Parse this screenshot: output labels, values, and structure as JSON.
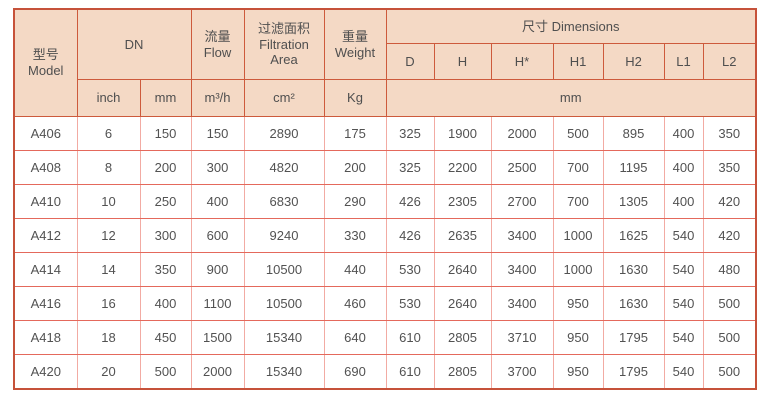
{
  "colors": {
    "header_bg": "#f4d9c5",
    "header_border": "#cd5a3c",
    "row_line": "#e4695c",
    "col_line": "#f2aba3",
    "text": "#4f4f4f"
  },
  "table": {
    "header": {
      "model_zh": "型号",
      "model_en": "Model",
      "dn": "DN",
      "flow_zh": "流量",
      "flow_en": "Flow",
      "area_zh": "过滤面积",
      "area_en": "Filtration Area",
      "weight_zh": "重量",
      "weight_en": "Weight",
      "dims_label": "尺寸 Dimensions",
      "dim_cols": [
        "D",
        "H",
        "H*",
        "H1",
        "H2",
        "L1",
        "L2"
      ],
      "units": {
        "inch": "inch",
        "mm": "mm",
        "flow": "m³/h",
        "area": "cm²",
        "weight": "Kg",
        "dims": "mm"
      }
    },
    "rows": [
      [
        "A406",
        "6",
        "150",
        "150",
        "2890",
        "175",
        "325",
        "1900",
        "2000",
        "500",
        "895",
        "400",
        "350"
      ],
      [
        "A408",
        "8",
        "200",
        "300",
        "4820",
        "200",
        "325",
        "2200",
        "2500",
        "700",
        "1195",
        "400",
        "350"
      ],
      [
        "A410",
        "10",
        "250",
        "400",
        "6830",
        "290",
        "426",
        "2305",
        "2700",
        "700",
        "1305",
        "400",
        "420"
      ],
      [
        "A412",
        "12",
        "300",
        "600",
        "9240",
        "330",
        "426",
        "2635",
        "3400",
        "1000",
        "1625",
        "540",
        "420"
      ],
      [
        "A414",
        "14",
        "350",
        "900",
        "10500",
        "440",
        "530",
        "2640",
        "3400",
        "1000",
        "1630",
        "540",
        "480"
      ],
      [
        "A416",
        "16",
        "400",
        "1100",
        "10500",
        "460",
        "530",
        "2640",
        "3400",
        "950",
        "1630",
        "540",
        "500"
      ],
      [
        "A418",
        "18",
        "450",
        "1500",
        "15340",
        "640",
        "610",
        "2805",
        "3710",
        "950",
        "1795",
        "540",
        "500"
      ],
      [
        "A420",
        "20",
        "500",
        "2000",
        "15340",
        "690",
        "610",
        "2805",
        "3700",
        "950",
        "1795",
        "540",
        "500"
      ]
    ]
  }
}
